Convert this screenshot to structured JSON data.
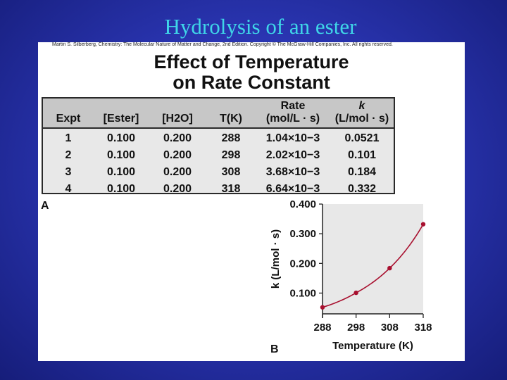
{
  "slide": {
    "title": "Hydrolysis of an ester"
  },
  "panel": {
    "credit": "Martin S. Silberberg, Chemistry: The Molecular Nature of Matter and Change, 2nd Edition. Copyright © The McGraw-Hill Companies, Inc. All rights reserved.",
    "heading_line1": "Effect of Temperature",
    "heading_line2": "on Rate Constant",
    "label_a": "A",
    "label_b": "B"
  },
  "table": {
    "columns": [
      {
        "h1": "",
        "h2": "Expt",
        "cells": [
          "1",
          "2",
          "3",
          "4"
        ]
      },
      {
        "h1": "",
        "h2": "[Ester]",
        "cells": [
          "0.100",
          "0.100",
          "0.100",
          "0.100"
        ]
      },
      {
        "h1": "",
        "h2": "[H2O]",
        "cells": [
          "0.200",
          "0.200",
          "0.200",
          "0.200"
        ]
      },
      {
        "h1": "",
        "h2": "T(K)",
        "cells": [
          "288",
          "298",
          "308",
          "318"
        ]
      },
      {
        "h1": "Rate",
        "h2": "(mol/L · s)",
        "cells": [
          "1.04×10−3",
          "2.02×10−3",
          "3.68×10−3",
          "6.64×10−3"
        ]
      },
      {
        "h1": "k",
        "h2": "(L/mol · s)",
        "cells": [
          "0.0521",
          "0.101",
          "0.184",
          "0.332"
        ]
      }
    ]
  },
  "chart_data": {
    "type": "line",
    "x": [
      288,
      298,
      308,
      318
    ],
    "series": [
      {
        "values": [
          0.0521,
          0.101,
          0.184,
          0.332
        ]
      }
    ],
    "xlabel": "Temperature (K)",
    "ylabel": "k (L/mol · s)",
    "xticks": [
      "288",
      "298",
      "308",
      "318"
    ],
    "yticks": [
      "0.100",
      "0.200",
      "0.300",
      "0.400"
    ],
    "xlim": [
      288,
      318
    ],
    "ylim": [
      0.03,
      0.4
    ],
    "grid": false,
    "plot_background": "#e8e8e8",
    "line_color": "#a8102f"
  }
}
